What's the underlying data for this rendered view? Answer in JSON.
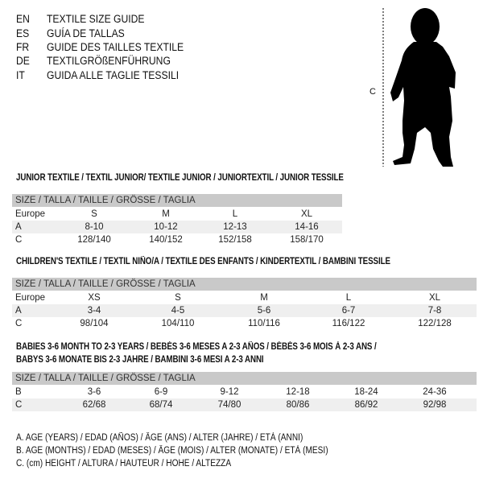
{
  "languages": [
    {
      "code": "EN",
      "title": "TEXTILE SIZE GUIDE"
    },
    {
      "code": "ES",
      "title": "GUÍA DE TALLAS"
    },
    {
      "code": "FR",
      "title": "GUIDE DES TAILLES TEXTILE"
    },
    {
      "code": "DE",
      "title": "TEXTILGRÖßENFÜHRUNG"
    },
    {
      "code": "IT",
      "title": "GUIDA ALLE TAGLIE TESSILI"
    }
  ],
  "figure": {
    "measure_label": "C"
  },
  "junior": {
    "title": "JUNIOR TEXTILE / TEXTIL JUNIOR/ TEXTILE JUNIOR / JUNIORTEXTIL / JUNIOR TESSILE",
    "header": "SIZE / TALLA / TAILLE / GRÖSSE / TAGLIA",
    "rows": [
      {
        "label": "Europe",
        "values": [
          "S",
          "M",
          "L",
          "XL"
        ]
      },
      {
        "label": "A",
        "values": [
          "8-10",
          "10-12",
          "12-13",
          "14-16"
        ]
      },
      {
        "label": "C",
        "values": [
          "128/140",
          "140/152",
          "152/158",
          "158/170"
        ]
      }
    ]
  },
  "children": {
    "title": "CHILDREN'S TEXTILE / TEXTIL NIÑO/A / TEXTILE DES ENFANTS / KINDERTEXTIL / BAMBINI TESSILE",
    "header": "SIZE / TALLA / TAILLE / GRÖSSE / TAGLIA",
    "rows": [
      {
        "label": "Europe",
        "values": [
          "XS",
          "S",
          "M",
          "L",
          "XL"
        ]
      },
      {
        "label": "A",
        "values": [
          "3-4",
          "4-5",
          "5-6",
          "6-7",
          "7-8"
        ]
      },
      {
        "label": "C",
        "values": [
          "98/104",
          "104/110",
          "110/116",
          "116/122",
          "122/128"
        ]
      }
    ]
  },
  "babies": {
    "title_line1": "BABIES 3-6 MONTH TO 2-3 YEARS / BEBÉS 3-6 MESES A 2-3 AÑOS / BÉBÉS 3-6 MOIS À 2-3 ANS /",
    "title_line2": "BABYS 3-6 MONATE BIS 2-3 JAHRE / BAMBINI 3-6 MESI A 2-3 ANNI",
    "header": "SIZE / TALLA / TAILLE / GRÖSSE / TAGLIA",
    "rows": [
      {
        "label": "B",
        "values": [
          "3-6",
          "6-9",
          "9-12",
          "12-18",
          "18-24",
          "24-36"
        ]
      },
      {
        "label": "C",
        "values": [
          "62/68",
          "68/74",
          "74/80",
          "80/86",
          "86/92",
          "92/98"
        ]
      }
    ]
  },
  "legend": [
    "A. AGE (YEARS) / EDAD (AÑOS) / ÂGE (ANS) / ALTER (JAHRE) / ETÀ (ANNI)",
    "B. AGE (MONTHS) / EDAD (MESES) / ÂGE (MOIS) / ALTER (MONATE) / ETÀ (MESI)",
    "C. (cm) HEIGHT / ALTURA / HAUTEUR / HÖHE / ALTEZZA"
  ]
}
